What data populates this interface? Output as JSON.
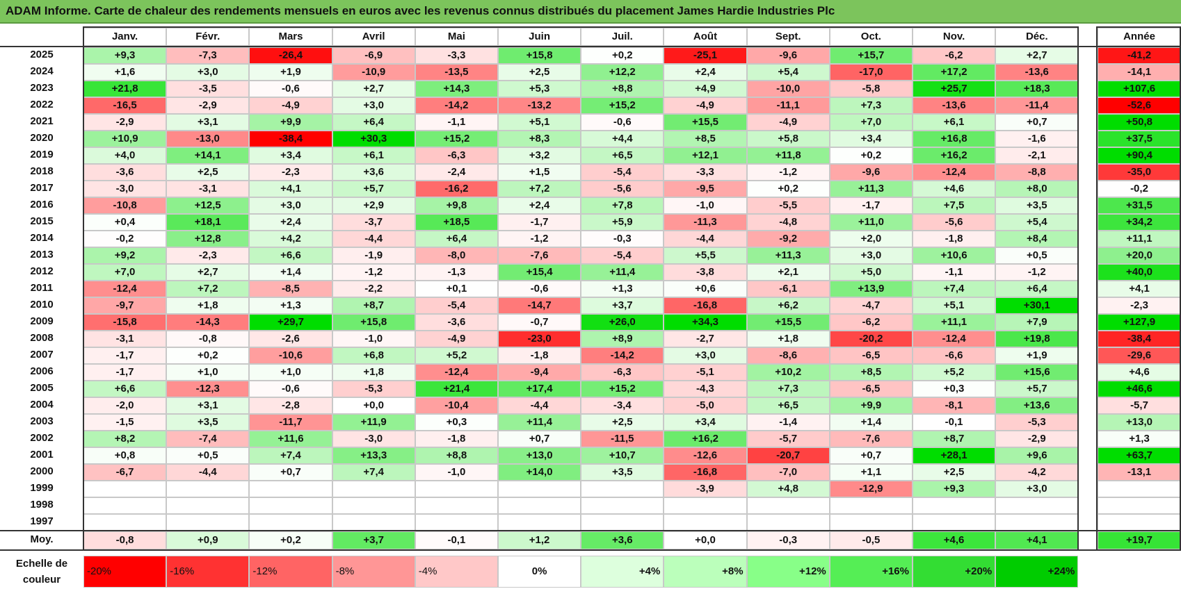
{
  "title": "ADAM Informe. Carte de chaleur des rendements mensuels en euros avec les revenus connus distribués du placement James Hardie Industries Plc",
  "chart_data": {
    "type": "heatmap",
    "title": "ADAM Informe. Carte de chaleur des rendements mensuels en euros avec les revenus connus distribués du placement James Hardie Industries Plc",
    "columns": [
      "Janv.",
      "Févr.",
      "Mars",
      "Avril",
      "Mai",
      "Juin",
      "Juil.",
      "Août",
      "Sept.",
      "Oct.",
      "Nov.",
      "Déc."
    ],
    "year_column_label": "Année",
    "rows": [
      {
        "year": "2025",
        "values": [
          "+9,3",
          "-7,3",
          "-26,4",
          "-6,9",
          "-3,3",
          "+15,8",
          "+0,2",
          "-25,1",
          "-9,6",
          "+15,7",
          "-6,2",
          "+2,7"
        ],
        "annual": "-41,2"
      },
      {
        "year": "2024",
        "values": [
          "+1,6",
          "+3,0",
          "+1,9",
          "-10,9",
          "-13,5",
          "+2,5",
          "+12,2",
          "+2,4",
          "+5,4",
          "-17,0",
          "+17,2",
          "-13,6"
        ],
        "annual": "-14,1"
      },
      {
        "year": "2023",
        "values": [
          "+21,8",
          "-3,5",
          "-0,6",
          "+2,7",
          "+14,3",
          "+5,3",
          "+8,8",
          "+4,9",
          "-10,0",
          "-5,8",
          "+25,7",
          "+18,3"
        ],
        "annual": "+107,6"
      },
      {
        "year": "2022",
        "values": [
          "-16,5",
          "-2,9",
          "-4,9",
          "+3,0",
          "-14,2",
          "-13,2",
          "+15,2",
          "-4,9",
          "-11,1",
          "+7,3",
          "-13,6",
          "-11,4"
        ],
        "annual": "-52,6"
      },
      {
        "year": "2021",
        "values": [
          "-2,9",
          "+3,1",
          "+9,9",
          "+6,4",
          "-1,1",
          "+5,1",
          "-0,6",
          "+15,5",
          "-4,9",
          "+7,0",
          "+6,1",
          "+0,7"
        ],
        "annual": "+50,8"
      },
      {
        "year": "2020",
        "values": [
          "+10,9",
          "-13,0",
          "-38,4",
          "+30,3",
          "+15,2",
          "+8,3",
          "+4,4",
          "+8,5",
          "+5,8",
          "+3,4",
          "+16,8",
          "-1,6"
        ],
        "annual": "+37,5"
      },
      {
        "year": "2019",
        "values": [
          "+4,0",
          "+14,1",
          "+3,4",
          "+6,1",
          "-6,3",
          "+3,2",
          "+6,5",
          "+12,1",
          "+11,8",
          "+0,2",
          "+16,2",
          "-2,1"
        ],
        "annual": "+90,4"
      },
      {
        "year": "2018",
        "values": [
          "-3,6",
          "+2,5",
          "-2,3",
          "+3,6",
          "-2,4",
          "+1,5",
          "-5,4",
          "-3,3",
          "-1,2",
          "-9,6",
          "-12,4",
          "-8,8"
        ],
        "annual": "-35,0"
      },
      {
        "year": "2017",
        "values": [
          "-3,0",
          "-3,1",
          "+4,1",
          "+5,7",
          "-16,2",
          "+7,2",
          "-5,6",
          "-9,5",
          "+0,2",
          "+11,3",
          "+4,6",
          "+8,0"
        ],
        "annual": "-0,2"
      },
      {
        "year": "2016",
        "values": [
          "-10,8",
          "+12,5",
          "+3,0",
          "+2,9",
          "+9,8",
          "+2,4",
          "+7,8",
          "-1,0",
          "-5,5",
          "-1,7",
          "+7,5",
          "+3,5"
        ],
        "annual": "+31,5"
      },
      {
        "year": "2015",
        "values": [
          "+0,4",
          "+18,1",
          "+2,4",
          "-3,7",
          "+18,5",
          "-1,7",
          "+5,9",
          "-11,3",
          "-4,8",
          "+11,0",
          "-5,6",
          "+5,4"
        ],
        "annual": "+34,2"
      },
      {
        "year": "2014",
        "values": [
          "-0,2",
          "+12,8",
          "+4,2",
          "-4,4",
          "+6,4",
          "-1,2",
          "-0,3",
          "-4,4",
          "-9,2",
          "+2,0",
          "-1,8",
          "+8,4"
        ],
        "annual": "+11,1"
      },
      {
        "year": "2013",
        "values": [
          "+9,2",
          "-2,3",
          "+6,6",
          "-1,9",
          "-8,0",
          "-7,6",
          "-5,4",
          "+5,5",
          "+11,3",
          "+3,0",
          "+10,6",
          "+0,5"
        ],
        "annual": "+20,0"
      },
      {
        "year": "2012",
        "values": [
          "+7,0",
          "+2,7",
          "+1,4",
          "-1,2",
          "-1,3",
          "+15,4",
          "+11,4",
          "-3,8",
          "+2,1",
          "+5,0",
          "-1,1",
          "-1,2"
        ],
        "annual": "+40,0"
      },
      {
        "year": "2011",
        "values": [
          "-12,4",
          "+7,2",
          "-8,5",
          "-2,2",
          "+0,1",
          "-0,6",
          "+1,3",
          "+0,6",
          "-6,1",
          "+13,9",
          "+7,4",
          "+6,4"
        ],
        "annual": "+4,1"
      },
      {
        "year": "2010",
        "values": [
          "-9,7",
          "+1,8",
          "+1,3",
          "+8,7",
          "-5,4",
          "-14,7",
          "+3,7",
          "-16,8",
          "+6,2",
          "-4,7",
          "+5,1",
          "+30,1"
        ],
        "annual": "-2,3"
      },
      {
        "year": "2009",
        "values": [
          "-15,8",
          "-14,3",
          "+29,7",
          "+15,8",
          "-3,6",
          "-0,7",
          "+26,0",
          "+34,3",
          "+15,5",
          "-6,2",
          "+11,1",
          "+7,9"
        ],
        "annual": "+127,9"
      },
      {
        "year": "2008",
        "values": [
          "-3,1",
          "-0,8",
          "-2,6",
          "-1,0",
          "-4,9",
          "-23,0",
          "+8,9",
          "-2,7",
          "+1,8",
          "-20,2",
          "-12,4",
          "+19,8"
        ],
        "annual": "-38,4"
      },
      {
        "year": "2007",
        "values": [
          "-1,7",
          "+0,2",
          "-10,6",
          "+6,8",
          "+5,2",
          "-1,8",
          "-14,2",
          "+3,0",
          "-8,6",
          "-6,5",
          "-6,6",
          "+1,9"
        ],
        "annual": "-29,6"
      },
      {
        "year": "2006",
        "values": [
          "-1,7",
          "+1,0",
          "+1,0",
          "+1,8",
          "-12,4",
          "-9,4",
          "-6,3",
          "-5,1",
          "+10,2",
          "+8,5",
          "+5,2",
          "+15,6"
        ],
        "annual": "+4,6"
      },
      {
        "year": "2005",
        "values": [
          "+6,6",
          "-12,3",
          "-0,6",
          "-5,3",
          "+21,4",
          "+17,4",
          "+15,2",
          "-4,3",
          "+7,3",
          "-6,5",
          "+0,3",
          "+5,7"
        ],
        "annual": "+46,6"
      },
      {
        "year": "2004",
        "values": [
          "-2,0",
          "+3,1",
          "-2,8",
          "+0,0",
          "-10,4",
          "-4,4",
          "-3,4",
          "-5,0",
          "+6,5",
          "+9,9",
          "-8,1",
          "+13,6"
        ],
        "annual": "-5,7"
      },
      {
        "year": "2003",
        "values": [
          "-1,5",
          "+3,5",
          "-11,7",
          "+11,9",
          "+0,3",
          "+11,4",
          "+2,5",
          "+3,4",
          "-1,4",
          "+1,4",
          "-0,1",
          "-5,3"
        ],
        "annual": "+13,0"
      },
      {
        "year": "2002",
        "values": [
          "+8,2",
          "-7,4",
          "+11,6",
          "-3,0",
          "-1,8",
          "+0,7",
          "-11,5",
          "+16,2",
          "-5,7",
          "-7,6",
          "+8,7",
          "-2,9"
        ],
        "annual": "+1,3"
      },
      {
        "year": "2001",
        "values": [
          "+0,8",
          "+0,5",
          "+7,4",
          "+13,3",
          "+8,8",
          "+13,0",
          "+10,7",
          "-12,6",
          "-20,7",
          "+0,7",
          "+28,1",
          "+9,6"
        ],
        "annual": "+63,7"
      },
      {
        "year": "2000",
        "values": [
          "-6,7",
          "-4,4",
          "+0,7",
          "+7,4",
          "-1,0",
          "+14,0",
          "+3,5",
          "-16,8",
          "-7,0",
          "+1,1",
          "+2,5",
          "-4,2"
        ],
        "annual": "-13,1"
      },
      {
        "year": "1999",
        "values": [
          "",
          "",
          "",
          "",
          "",
          "",
          "",
          "-3,9",
          "+4,8",
          "-12,9",
          "+9,3",
          "+3,0"
        ],
        "annual": ""
      },
      {
        "year": "1998",
        "values": [
          "",
          "",
          "",
          "",
          "",
          "",
          "",
          "",
          "",
          "",
          "",
          ""
        ],
        "annual": ""
      },
      {
        "year": "1997",
        "values": [
          "",
          "",
          "",
          "",
          "",
          "",
          "",
          "",
          "",
          "",
          "",
          ""
        ],
        "annual": ""
      }
    ],
    "average": {
      "label": "Moy.",
      "values": [
        "-0,8",
        "+0,9",
        "+0,2",
        "+3,7",
        "-0,1",
        "+1,2",
        "+3,6",
        "+0,0",
        "-0,3",
        "-0,5",
        "+4,6",
        "+4,1"
      ],
      "annual": "+19,7"
    },
    "color_scale": {
      "label": "Echelle de couleur",
      "labels": [
        "-20%",
        "-16%",
        "-12%",
        "-8%",
        "-4%",
        "0%",
        "+4%",
        "+8%",
        "+12%",
        "+16%",
        "+20%",
        "+24%"
      ],
      "stops": [
        -20,
        -16,
        -12,
        -8,
        -4,
        0,
        4,
        8,
        12,
        16,
        20,
        24
      ],
      "colors": [
        "#ff0000",
        "#ff3232",
        "#ff6464",
        "#ff9696",
        "#ffc8c8",
        "#ffffff",
        "#ddffdd",
        "#bbffbb",
        "#88ff88",
        "#55ee55",
        "#33dd33",
        "#00cc00"
      ]
    },
    "negative_color": "#ff0000",
    "positive_color": "#00dd00"
  }
}
